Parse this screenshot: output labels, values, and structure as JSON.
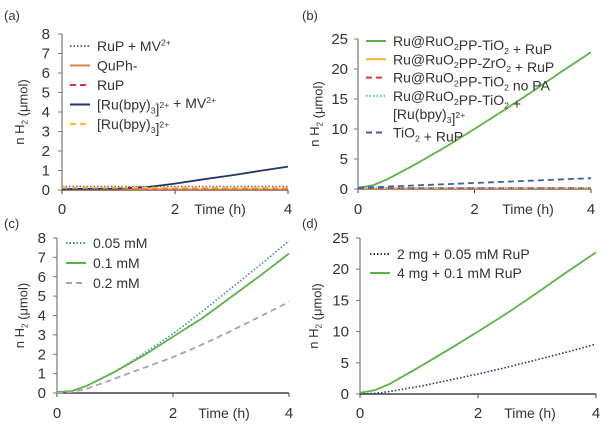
{
  "chart_data": [
    {
      "type": "line",
      "panel_label": "(a)",
      "xlabel": "Time (h)",
      "ylabel": "n H₂ (μmol)",
      "xlim": [
        0,
        4
      ],
      "ylim": [
        0,
        8
      ],
      "xticks": [
        "0",
        "2",
        "4"
      ],
      "yticks": [
        "0",
        "1",
        "2",
        "3",
        "4",
        "5",
        "6",
        "7",
        "8"
      ],
      "legend_position": "top-left",
      "series": [
        {
          "name": "RuP + MV²⁺",
          "color": "#7b4fa8",
          "style": "dotted",
          "x": [
            0,
            1,
            2,
            3,
            4
          ],
          "y": [
            0.18,
            0.18,
            0.18,
            0.18,
            0.18
          ]
        },
        {
          "name": "QuPh-",
          "color": "#e8823a",
          "style": "solid",
          "x": [
            0,
            1,
            2,
            3,
            4
          ],
          "y": [
            0.03,
            0.03,
            0.03,
            0.03,
            0.03
          ]
        },
        {
          "name": "RuP",
          "color": "#d9343a",
          "style": "dashed",
          "x": [
            0,
            1,
            2,
            3,
            4
          ],
          "y": [
            0.08,
            0.08,
            0.08,
            0.08,
            0.08
          ]
        },
        {
          "name": "[Ru(bpy)₃]²⁺ + MV²⁺",
          "color": "#26336b",
          "style": "solid",
          "x": [
            0,
            1,
            1.5,
            2,
            2.5,
            3,
            3.5,
            4
          ],
          "y": [
            0.05,
            0.07,
            0.15,
            0.33,
            0.55,
            0.75,
            0.98,
            1.2
          ]
        },
        {
          "name": "[Ru(bpy)₃]²⁺",
          "color": "#f2c22e",
          "style": "dashed",
          "x": [
            0,
            1,
            2,
            3,
            4
          ],
          "y": [
            0.12,
            0.12,
            0.12,
            0.12,
            0.12
          ]
        }
      ]
    },
    {
      "type": "line",
      "panel_label": "(b)",
      "xlabel": "Time (h)",
      "ylabel": "n H₂ (μmol)",
      "xlim": [
        0,
        4
      ],
      "ylim": [
        0,
        25
      ],
      "xticks": [
        "0",
        "2",
        "4"
      ],
      "yticks": [
        "0",
        "5",
        "10",
        "15",
        "20",
        "25"
      ],
      "legend_position": "top-left",
      "series": [
        {
          "name": "Ru@RuO₂PP-TiO₂ + RuP",
          "color": "#5db347",
          "style": "solid",
          "x": [
            0,
            0.25,
            0.5,
            1,
            1.5,
            2,
            2.5,
            3,
            3.5,
            4
          ],
          "y": [
            0.2,
            0.6,
            1.6,
            4.2,
            7.0,
            10.0,
            13.1,
            16.3,
            19.6,
            22.8
          ]
        },
        {
          "name": "Ru@RuO₂PP-ZrO₂ + RuP",
          "color": "#f2b632",
          "style": "solid",
          "x": [
            0,
            4
          ],
          "y": [
            0.1,
            0.1
          ]
        },
        {
          "name": "Ru@RuO₂PP-TiO₂ no PA",
          "color": "#d9343a",
          "style": "dashed",
          "x": [
            0,
            4
          ],
          "y": [
            0.15,
            0.15
          ]
        },
        {
          "name": "Ru@RuO₂PP-TiO₂ + [Ru(bpy)₃]²⁺",
          "color": "#58b7e0",
          "style": "dotted",
          "x": [
            0,
            4
          ],
          "y": [
            0.2,
            0.2
          ]
        },
        {
          "name": "TiO₂ + RuP",
          "color": "#3f5fa8",
          "style": "dashed",
          "x": [
            0,
            1,
            2,
            3,
            4
          ],
          "y": [
            0.2,
            0.6,
            1.0,
            1.4,
            1.8
          ]
        }
      ]
    },
    {
      "type": "line",
      "panel_label": "(c)",
      "xlabel": "Time (h)",
      "ylabel": "n H₂ (μmol)",
      "xlim": [
        0,
        4
      ],
      "ylim": [
        0,
        8
      ],
      "xticks": [
        "0",
        "2",
        "4"
      ],
      "yticks": [
        "0",
        "1",
        "2",
        "3",
        "4",
        "5",
        "6",
        "7",
        "8"
      ],
      "legend_position": "top-left",
      "series": [
        {
          "name": "0.05 mM",
          "color": "#3a8fb8",
          "style": "dotted",
          "x": [
            0,
            0.25,
            0.5,
            1,
            1.5,
            2,
            2.5,
            3,
            3.5,
            4
          ],
          "y": [
            0.05,
            0.1,
            0.35,
            1.1,
            2.05,
            3.05,
            4.2,
            5.4,
            6.6,
            7.85
          ]
        },
        {
          "name": "0.1 mM",
          "color": "#5db347",
          "style": "solid",
          "x": [
            0,
            0.25,
            0.5,
            1,
            1.5,
            2,
            2.5,
            3,
            3.5,
            4
          ],
          "y": [
            0.05,
            0.1,
            0.35,
            1.1,
            1.95,
            2.9,
            3.85,
            4.95,
            6.05,
            7.2
          ]
        },
        {
          "name": "0.2 mM",
          "color": "#a5a5a5",
          "style": "dashed",
          "x": [
            0,
            0.25,
            0.5,
            1,
            1.5,
            2,
            2.5,
            3,
            3.5,
            4
          ],
          "y": [
            0.0,
            0.05,
            0.2,
            0.75,
            1.3,
            1.85,
            2.5,
            3.2,
            3.95,
            4.7
          ]
        }
      ]
    },
    {
      "type": "line",
      "panel_label": "(d)",
      "xlabel": "Time (h)",
      "ylabel": "n H₂ (μmol)",
      "xlim": [
        0,
        4
      ],
      "ylim": [
        0,
        25
      ],
      "xticks": [
        "0",
        "2",
        "4"
      ],
      "yticks": [
        "0",
        "5",
        "10",
        "15",
        "20",
        "25"
      ],
      "legend_position": "top-left",
      "series": [
        {
          "name": "2 mg + 0.05 mM RuP",
          "color": "#26336b",
          "style": "dotted",
          "x": [
            0,
            0.25,
            0.5,
            1,
            1.5,
            2,
            2.5,
            3,
            3.5,
            4
          ],
          "y": [
            0.0,
            0.1,
            0.4,
            1.2,
            2.2,
            3.2,
            4.3,
            5.5,
            6.7,
            8.0
          ]
        },
        {
          "name": "4 mg + 0.1 mM RuP",
          "color": "#5db347",
          "style": "solid",
          "x": [
            0,
            0.25,
            0.5,
            1,
            1.5,
            2,
            2.5,
            3,
            3.5,
            4
          ],
          "y": [
            0.2,
            0.6,
            1.6,
            4.3,
            7.1,
            10.0,
            13.0,
            16.2,
            19.5,
            22.7
          ]
        }
      ]
    }
  ]
}
